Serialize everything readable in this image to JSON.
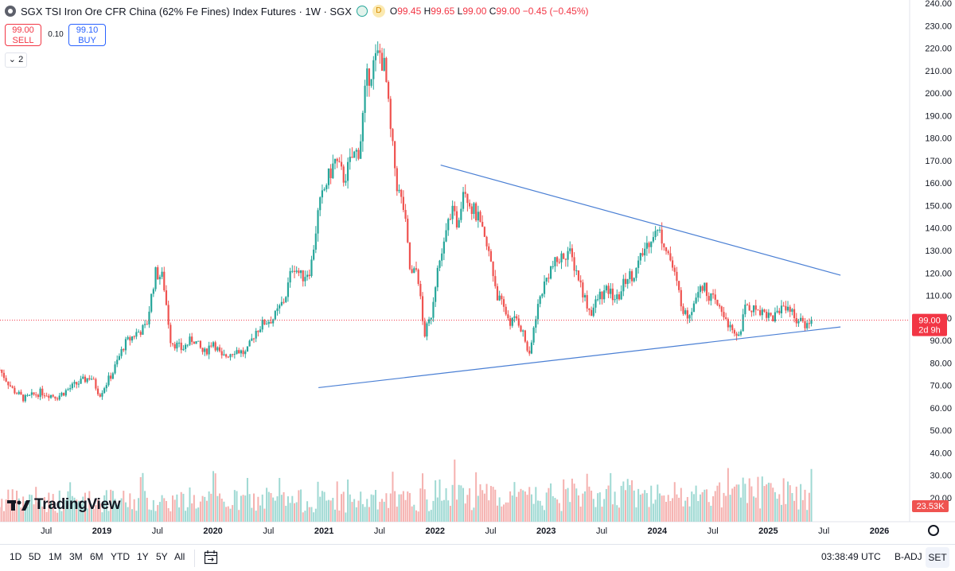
{
  "header": {
    "title": "SGX TSI Iron Ore CFR China (62% Fe Fines) Index Futures · 1W · SGX",
    "status_badge": "D",
    "ohlc": {
      "o_label": "O",
      "o": "99.45",
      "h_label": "H",
      "h": "99.65",
      "l_label": "L",
      "l": "99.00",
      "c_label": "C",
      "c": "99.00",
      "change": "−0.45 (−0.45%)"
    }
  },
  "trade": {
    "sell_price": "99.00",
    "sell_label": "SELL",
    "spread": "0.10",
    "buy_price": "99.10",
    "buy_label": "BUY"
  },
  "indicator_collapse": "2",
  "price_tag": {
    "price": "99.00",
    "countdown": "2d 9h"
  },
  "volume_tag": "23.53K",
  "watermark": "TradingView",
  "bottom_bar": {
    "ranges": [
      "1D",
      "5D",
      "1M",
      "3M",
      "6M",
      "YTD",
      "1Y",
      "5Y",
      "All"
    ],
    "time": "03:38:49 UTC",
    "adjust": "B-ADJ",
    "session": "SET"
  },
  "colors": {
    "up": "#26a69a",
    "down": "#ef5350",
    "trend": "#4a7fd4",
    "price_line": "#f23645"
  },
  "chart_data": {
    "type": "candlestick",
    "title": "SGX TSI Iron Ore CFR China (62% Fe Fines) Index Futures",
    "interval": "1W",
    "price_axis_ticks": [
      "240.00",
      "230.00",
      "220.00",
      "210.00",
      "200.00",
      "190.00",
      "180.00",
      "170.00",
      "160.00",
      "150.00",
      "140.00",
      "130.00",
      "120.00",
      "110.00",
      "100.00",
      "90.00",
      "80.00",
      "70.00",
      "60.00",
      "50.00",
      "40.00",
      "30.00",
      "20.00"
    ],
    "ylim": [
      20,
      240
    ],
    "time_axis": [
      {
        "label": "Jul",
        "t": 2018.5
      },
      {
        "label": "2019",
        "t": 2019.0
      },
      {
        "label": "Jul",
        "t": 2019.5
      },
      {
        "label": "2020",
        "t": 2020.0
      },
      {
        "label": "Jul",
        "t": 2020.5
      },
      {
        "label": "2021",
        "t": 2021.0
      },
      {
        "label": "Jul",
        "t": 2021.5
      },
      {
        "label": "2022",
        "t": 2022.0
      },
      {
        "label": "Jul",
        "t": 2022.5
      },
      {
        "label": "2023",
        "t": 2023.0
      },
      {
        "label": "Jul",
        "t": 2023.5
      },
      {
        "label": "2024",
        "t": 2024.0
      },
      {
        "label": "Jul",
        "t": 2024.5
      },
      {
        "label": "2025",
        "t": 2025.0
      },
      {
        "label": "Jul",
        "t": 2025.5
      },
      {
        "label": "2026",
        "t": 2026.0
      }
    ],
    "xlim": [
      2018.08,
      2026.5
    ],
    "price_path": [
      [
        2018.08,
        77
      ],
      [
        2018.2,
        68
      ],
      [
        2018.3,
        64
      ],
      [
        2018.45,
        67
      ],
      [
        2018.6,
        65
      ],
      [
        2018.75,
        70
      ],
      [
        2018.9,
        74
      ],
      [
        2018.98,
        66
      ],
      [
        2019.1,
        76
      ],
      [
        2019.2,
        88
      ],
      [
        2019.3,
        93
      ],
      [
        2019.4,
        96
      ],
      [
        2019.48,
        120
      ],
      [
        2019.55,
        118
      ],
      [
        2019.62,
        90
      ],
      [
        2019.72,
        86
      ],
      [
        2019.82,
        91
      ],
      [
        2019.92,
        84
      ],
      [
        2020.0,
        90
      ],
      [
        2020.08,
        82
      ],
      [
        2020.2,
        86
      ],
      [
        2020.3,
        84
      ],
      [
        2020.38,
        94
      ],
      [
        2020.46,
        98
      ],
      [
        2020.55,
        100
      ],
      [
        2020.65,
        109
      ],
      [
        2020.72,
        124
      ],
      [
        2020.8,
        118
      ],
      [
        2020.88,
        122
      ],
      [
        2020.95,
        148
      ],
      [
        2021.02,
        160
      ],
      [
        2021.1,
        170
      ],
      [
        2021.18,
        162
      ],
      [
        2021.26,
        172
      ],
      [
        2021.32,
        175
      ],
      [
        2021.38,
        205
      ],
      [
        2021.44,
        212
      ],
      [
        2021.5,
        218
      ],
      [
        2021.55,
        210
      ],
      [
        2021.6,
        182
      ],
      [
        2021.66,
        158
      ],
      [
        2021.72,
        148
      ],
      [
        2021.78,
        118
      ],
      [
        2021.84,
        122
      ],
      [
        2021.9,
        92
      ],
      [
        2021.96,
        100
      ],
      [
        2022.02,
        122
      ],
      [
        2022.08,
        132
      ],
      [
        2022.14,
        148
      ],
      [
        2022.2,
        142
      ],
      [
        2022.26,
        160
      ],
      [
        2022.32,
        150
      ],
      [
        2022.38,
        145
      ],
      [
        2022.44,
        135
      ],
      [
        2022.5,
        126
      ],
      [
        2022.56,
        110
      ],
      [
        2022.62,
        104
      ],
      [
        2022.68,
        98
      ],
      [
        2022.74,
        100
      ],
      [
        2022.8,
        92
      ],
      [
        2022.85,
        82
      ],
      [
        2022.9,
        100
      ],
      [
        2022.96,
        112
      ],
      [
        2023.04,
        122
      ],
      [
        2023.12,
        126
      ],
      [
        2023.2,
        130
      ],
      [
        2023.28,
        120
      ],
      [
        2023.34,
        110
      ],
      [
        2023.4,
        102
      ],
      [
        2023.48,
        110
      ],
      [
        2023.56,
        112
      ],
      [
        2023.64,
        108
      ],
      [
        2023.72,
        118
      ],
      [
        2023.8,
        120
      ],
      [
        2023.88,
        130
      ],
      [
        2023.96,
        138
      ],
      [
        2024.02,
        138
      ],
      [
        2024.08,
        132
      ],
      [
        2024.14,
        122
      ],
      [
        2024.2,
        110
      ],
      [
        2024.26,
        100
      ],
      [
        2024.32,
        106
      ],
      [
        2024.38,
        116
      ],
      [
        2024.44,
        112
      ],
      [
        2024.5,
        108
      ],
      [
        2024.56,
        104
      ],
      [
        2024.62,
        100
      ],
      [
        2024.68,
        92
      ],
      [
        2024.74,
        93
      ],
      [
        2024.8,
        106
      ],
      [
        2024.86,
        104
      ],
      [
        2024.92,
        104
      ],
      [
        2024.98,
        102
      ],
      [
        2025.04,
        100
      ],
      [
        2025.1,
        104
      ],
      [
        2025.16,
        106
      ],
      [
        2025.22,
        102
      ],
      [
        2025.28,
        98
      ],
      [
        2025.34,
        97
      ],
      [
        2025.38,
        99
      ]
    ],
    "volume_label": "Volume",
    "volume_axis_max": 80,
    "trend_lines": [
      {
        "name": "upper",
        "from": [
          2022.05,
          168
        ],
        "to": [
          2025.65,
          119
        ]
      },
      {
        "name": "lower",
        "from": [
          2020.95,
          69
        ],
        "to": [
          2025.65,
          96
        ]
      }
    ],
    "last_price": 99.0
  }
}
